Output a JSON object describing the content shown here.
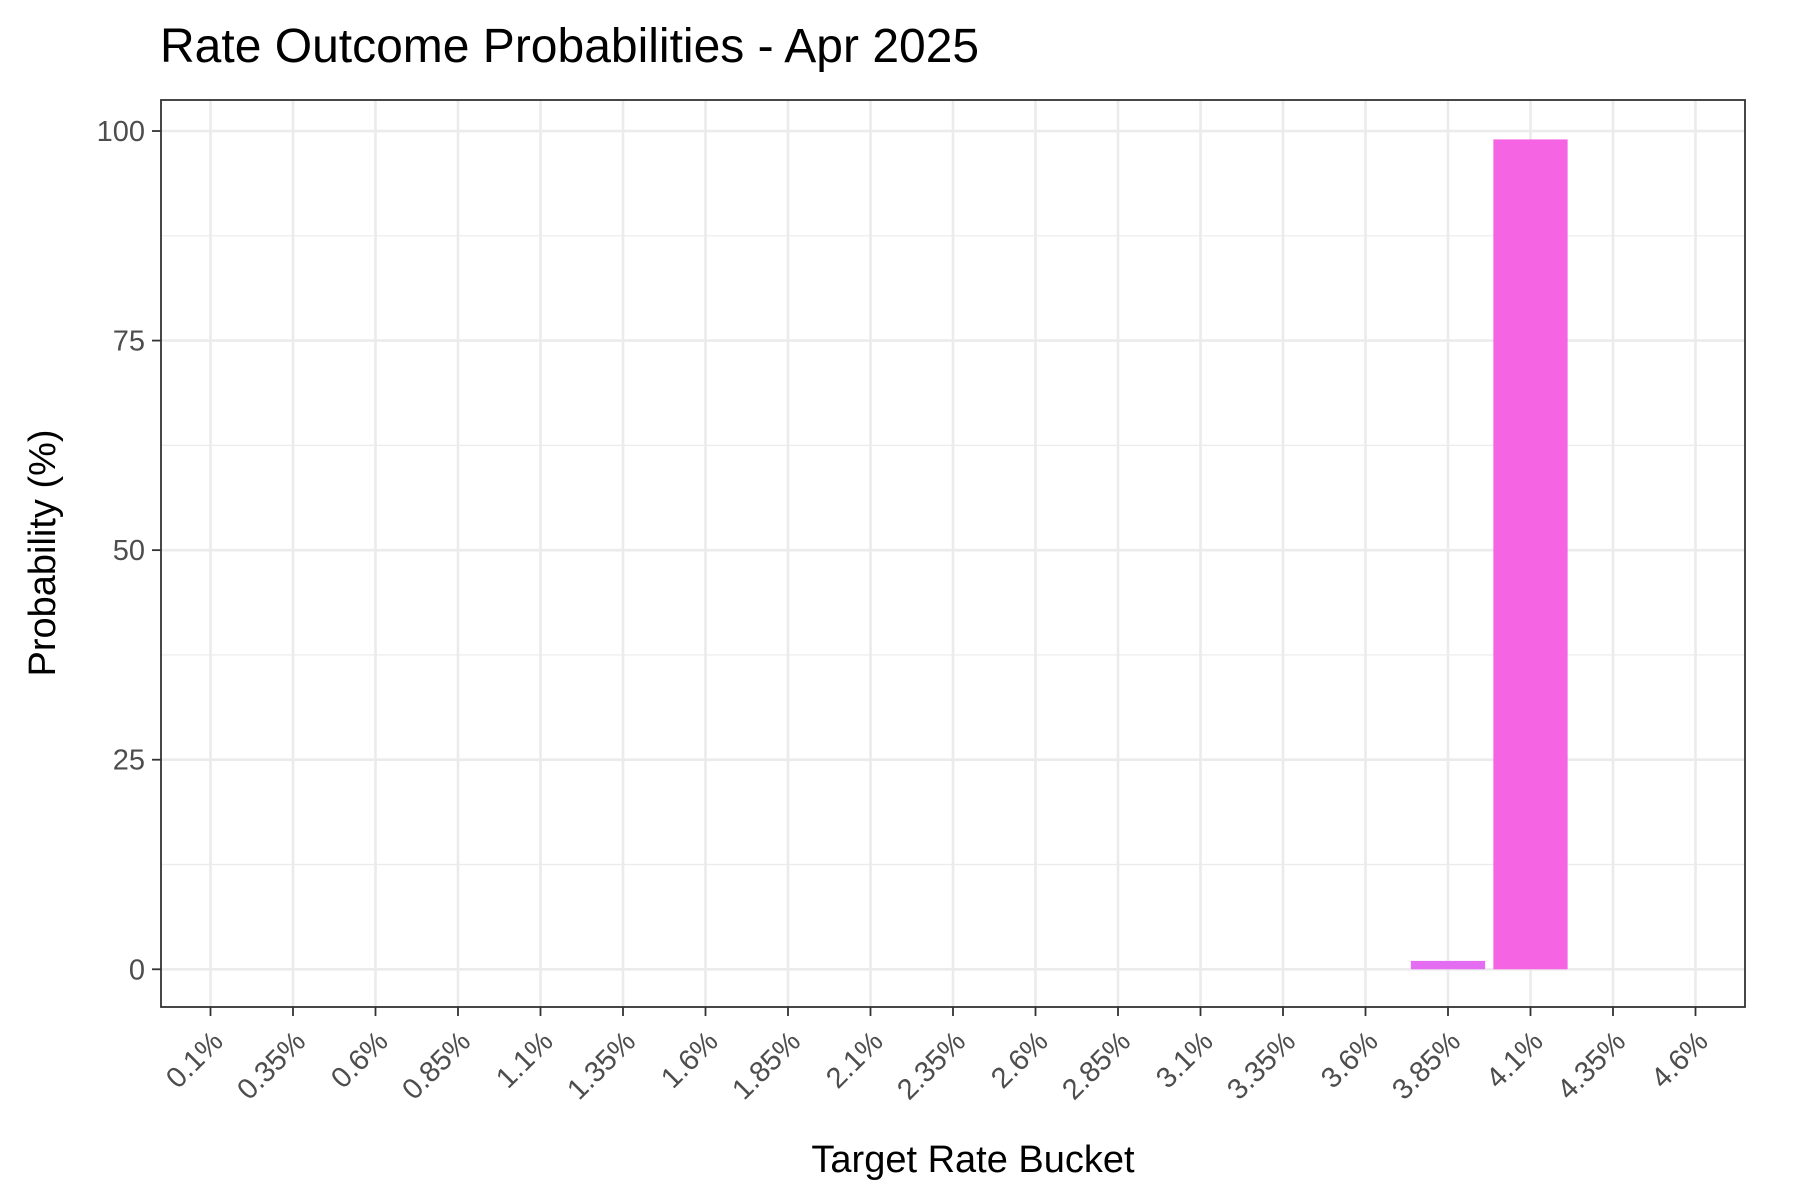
{
  "chart_data": {
    "type": "bar",
    "title": "Rate Outcome Probabilities - Apr 2025",
    "xlabel": "Target Rate Bucket",
    "ylabel": "Probability (%)",
    "categories": [
      "0.1%",
      "0.35%",
      "0.6%",
      "0.85%",
      "1.1%",
      "1.35%",
      "1.6%",
      "1.85%",
      "2.1%",
      "2.35%",
      "2.6%",
      "2.85%",
      "3.1%",
      "3.35%",
      "3.6%",
      "3.85%",
      "4.1%",
      "4.35%",
      "4.6%"
    ],
    "values": [
      0,
      0,
      0,
      0,
      0,
      0,
      0,
      0,
      0,
      0,
      0,
      0,
      0,
      0,
      0,
      1.0,
      99.0,
      0,
      0
    ],
    "bar_colors": {
      "3.85%": "#e36cf0",
      "4.1%": "#f564e3"
    },
    "yticks": [
      0,
      25,
      50,
      75,
      100
    ],
    "ylim": [
      -4.5,
      103.7
    ],
    "grid": true,
    "legend": "none"
  }
}
